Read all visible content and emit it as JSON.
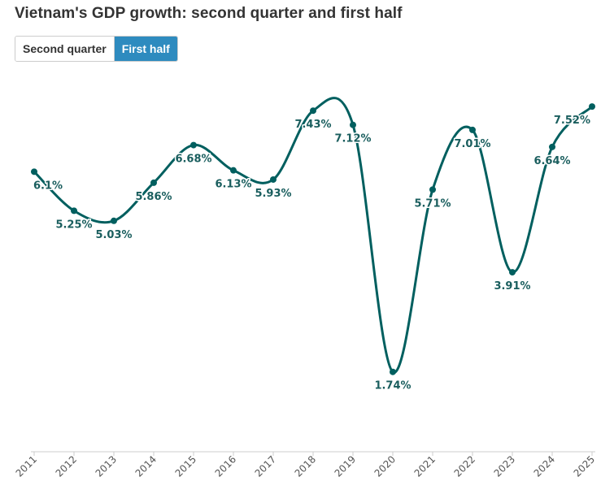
{
  "title": "Vietnam's GDP growth: second quarter and first half",
  "toggle": {
    "options": [
      "Second quarter",
      "First half"
    ],
    "selected": "First half"
  },
  "colors": {
    "line": "#005f5f",
    "label": "#1a5e5e",
    "accent": "#2e8bbf",
    "axis": "#cccccc"
  },
  "chart_data": {
    "type": "line",
    "title": "",
    "xlabel": "",
    "ylabel": "",
    "categories": [
      "2011",
      "2012",
      "2013",
      "2014",
      "2015",
      "2016",
      "2017",
      "2018",
      "2019",
      "2020",
      "2021",
      "2022",
      "2023",
      "2024",
      "2025"
    ],
    "series": [
      {
        "values": [
          6.1,
          5.25,
          5.03,
          5.86,
          6.68,
          6.13,
          5.93,
          7.43,
          7.12,
          1.74,
          5.71,
          7.01,
          3.91,
          6.64,
          7.52
        ],
        "labels": [
          "6.1%",
          "5.25%",
          "5.03%",
          "5.86%",
          "6.68%",
          "6.13%",
          "5.93%",
          "7.43%",
          "7.12%",
          "1.74%",
          "5.71%",
          "7.01%",
          "3.91%",
          "6.64%",
          "7.52%"
        ]
      }
    ],
    "ylim": [
      0,
      8
    ],
    "grid": false,
    "legend": "none"
  }
}
